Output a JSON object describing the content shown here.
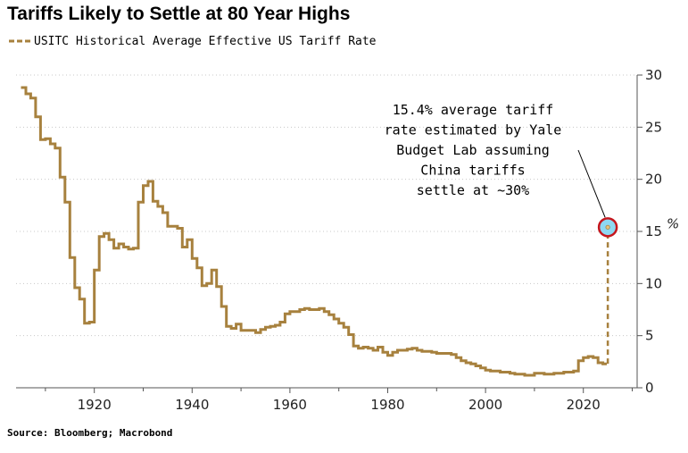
{
  "title": "Tariffs Likely to Settle at 80 Year Highs",
  "legend": {
    "label": "USITC Historical Average Effective US Tariff Rate"
  },
  "annotation": {
    "lines": [
      "15.4% average tariff",
      "rate estimated by Yale",
      "Budget Lab assuming",
      "China tariffs",
      "settle at ~30%"
    ]
  },
  "y_unit_marker": "%",
  "source": "Source: Bloomberg; Macrobond",
  "colors": {
    "series": "#a7813e",
    "marker_ring": "#c5161d",
    "marker_fill": "#8ed8f2",
    "grid": "#c8c8c8"
  },
  "chart_data": {
    "type": "line",
    "title": "Tariffs Likely to Settle at 80 Year Highs",
    "xlabel": "",
    "ylabel": "",
    "xlim": [
      1904,
      2031
    ],
    "ylim": [
      0,
      30
    ],
    "x_ticks": [
      1920,
      1940,
      1960,
      1980,
      2000,
      2020
    ],
    "y_ticks": [
      0,
      5,
      10,
      15,
      20,
      25,
      30
    ],
    "y_axis_side": "right",
    "grid": "horizontal dotted",
    "series": [
      {
        "name": "USITC Historical Average Effective US Tariff Rate",
        "step": true,
        "x": [
          1905,
          1906,
          1907,
          1908,
          1909,
          1910,
          1911,
          1912,
          1913,
          1914,
          1915,
          1916,
          1917,
          1918,
          1919,
          1920,
          1921,
          1922,
          1923,
          1924,
          1925,
          1926,
          1927,
          1928,
          1929,
          1930,
          1931,
          1932,
          1933,
          1934,
          1935,
          1936,
          1937,
          1938,
          1939,
          1940,
          1941,
          1942,
          1943,
          1944,
          1945,
          1946,
          1947,
          1948,
          1949,
          1950,
          1951,
          1952,
          1953,
          1954,
          1955,
          1956,
          1957,
          1958,
          1959,
          1960,
          1961,
          1962,
          1963,
          1964,
          1965,
          1966,
          1967,
          1968,
          1969,
          1970,
          1971,
          1972,
          1973,
          1974,
          1975,
          1976,
          1977,
          1978,
          1979,
          1980,
          1981,
          1982,
          1983,
          1984,
          1985,
          1986,
          1987,
          1988,
          1989,
          1990,
          1991,
          1992,
          1993,
          1994,
          1995,
          1996,
          1997,
          1998,
          1999,
          2000,
          2001,
          2002,
          2003,
          2004,
          2005,
          2006,
          2007,
          2008,
          2009,
          2010,
          2011,
          2012,
          2013,
          2014,
          2015,
          2016,
          2017,
          2018,
          2019,
          2020,
          2021,
          2022,
          2023,
          2024
        ],
        "y": [
          28.8,
          28.2,
          27.8,
          26.0,
          23.8,
          23.9,
          23.4,
          23.0,
          20.2,
          17.8,
          12.5,
          9.6,
          8.5,
          6.2,
          6.3,
          11.3,
          14.5,
          14.8,
          14.2,
          13.4,
          13.8,
          13.5,
          13.3,
          13.4,
          17.8,
          19.4,
          19.8,
          17.9,
          17.4,
          16.8,
          15.5,
          15.5,
          15.3,
          13.5,
          14.2,
          12.4,
          11.5,
          9.8,
          10.0,
          11.3,
          9.7,
          7.8,
          5.9,
          5.7,
          6.1,
          5.5,
          5.5,
          5.5,
          5.3,
          5.6,
          5.8,
          5.9,
          6.0,
          6.3,
          7.1,
          7.3,
          7.3,
          7.5,
          7.6,
          7.5,
          7.5,
          7.6,
          7.3,
          7.0,
          6.6,
          6.2,
          5.8,
          5.1,
          4.0,
          3.8,
          3.9,
          3.8,
          3.6,
          3.9,
          3.4,
          3.1,
          3.4,
          3.6,
          3.6,
          3.7,
          3.8,
          3.6,
          3.5,
          3.5,
          3.4,
          3.3,
          3.3,
          3.3,
          3.2,
          2.9,
          2.6,
          2.4,
          2.3,
          2.1,
          1.9,
          1.7,
          1.6,
          1.6,
          1.5,
          1.5,
          1.4,
          1.3,
          1.3,
          1.2,
          1.2,
          1.4,
          1.4,
          1.3,
          1.3,
          1.4,
          1.4,
          1.5,
          1.5,
          1.6,
          2.6,
          2.9,
          3.0,
          2.9,
          2.4,
          2.3
        ]
      },
      {
        "name": "",
        "style": "dashed",
        "x": [
          2025,
          2025
        ],
        "y": [
          2.3,
          15.4
        ]
      }
    ],
    "highlight_point": {
      "x": 2025,
      "y": 15.4
    }
  }
}
